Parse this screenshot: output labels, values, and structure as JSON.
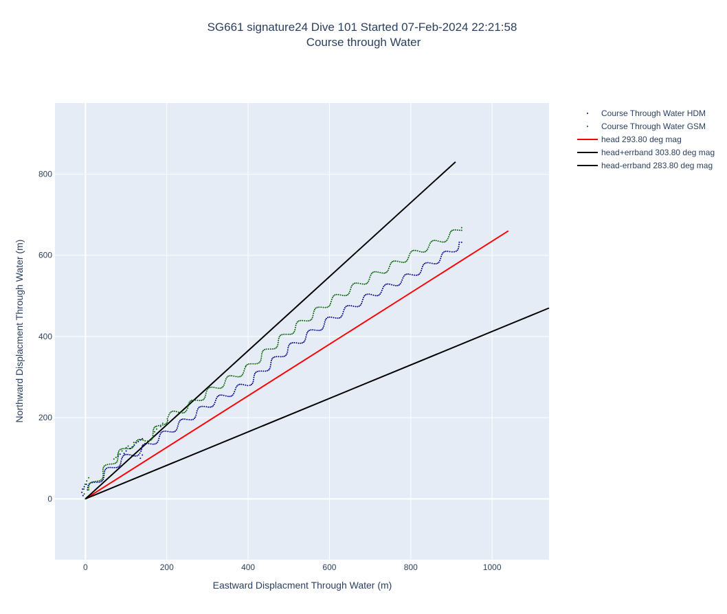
{
  "chart_data": {
    "type": "scatter",
    "title": "SG661 signature24 Dive 101 Started 07-Feb-2024 22:21:58",
    "subtitle": "Course through Water",
    "xlabel": "Eastward Displacment Through Water (m)",
    "ylabel": "Northward Displacment Through Water (m)",
    "xlim": [
      -75,
      1140
    ],
    "ylim": [
      -150,
      975
    ],
    "x_ticks": [
      0,
      200,
      400,
      600,
      800,
      1000
    ],
    "y_ticks": [
      0,
      200,
      400,
      600,
      800
    ],
    "grid": true,
    "legend_position": "top-right",
    "series": [
      {
        "name": "Course Through Water HDM",
        "mode": "markers",
        "color": "#00008b",
        "track": {
          "spiral_start": [
            [
              0,
              0
            ],
            [
              -6,
              8
            ],
            [
              -9,
              16
            ],
            [
              -7,
              24
            ],
            [
              -3,
              30
            ],
            [
              2,
              36
            ]
          ],
          "waypoints": [
            [
              5,
              22
            ],
            [
              30,
              45
            ],
            [
              60,
              72
            ],
            [
              90,
              96
            ],
            [
              120,
              112
            ],
            [
              140,
              120
            ],
            [
              150,
              130
            ],
            [
              180,
              150
            ],
            [
              250,
              195
            ],
            [
              300,
              230
            ],
            [
              400,
              285
            ],
            [
              500,
              370
            ],
            [
              600,
              440
            ],
            [
              700,
              500
            ],
            [
              800,
              550
            ],
            [
              900,
              610
            ],
            [
              925,
              632
            ]
          ],
          "wave_amplitude": 8,
          "wave_wavelength": 55,
          "extra_points": [
            [
              80,
              105
            ],
            [
              85,
              110
            ],
            [
              95,
              112
            ],
            [
              100,
              118
            ],
            [
              110,
              124
            ],
            [
              115,
              128
            ],
            [
              120,
              132
            ],
            [
              125,
              138
            ],
            [
              130,
              141
            ],
            [
              135,
              145
            ],
            [
              140,
              148
            ],
            [
              135,
              100
            ],
            [
              140,
              108
            ]
          ]
        }
      },
      {
        "name": "Course Through Water GSM",
        "mode": "markers",
        "color": "#006400",
        "track": {
          "spiral_start": [
            [
              0,
              0
            ],
            [
              -3,
              12
            ],
            [
              -4,
              24
            ],
            [
              -1,
              36
            ],
            [
              3,
              44
            ],
            [
              8,
              52
            ]
          ],
          "waypoints": [
            [
              8,
              22
            ],
            [
              30,
              48
            ],
            [
              60,
              85
            ],
            [
              90,
              115
            ],
            [
              110,
              132
            ],
            [
              120,
              140
            ],
            [
              125,
              135
            ],
            [
              150,
              145
            ],
            [
              180,
              175
            ],
            [
              200,
              200
            ],
            [
              250,
              225
            ],
            [
              300,
              262
            ],
            [
              400,
              322
            ],
            [
              500,
              410
            ],
            [
              600,
              485
            ],
            [
              700,
              545
            ],
            [
              800,
              600
            ],
            [
              900,
              650
            ],
            [
              925,
              668
            ]
          ],
          "wave_amplitude": 8,
          "wave_wavelength": 55,
          "extra_points": [
            [
              70,
              98
            ],
            [
              75,
              102
            ],
            [
              80,
              110
            ],
            [
              90,
              118
            ],
            [
              100,
              126
            ],
            [
              105,
              130
            ],
            [
              170,
              165
            ],
            [
              175,
              172
            ],
            [
              185,
              178
            ],
            [
              190,
              186
            ]
          ]
        }
      },
      {
        "name": "head 293.80 deg mag",
        "mode": "lines",
        "color": "#ff0000",
        "x": [
          0,
          1040
        ],
        "y": [
          0,
          660
        ]
      },
      {
        "name": "head+errband 303.80 deg mag",
        "mode": "lines",
        "color": "#000000",
        "x": [
          0,
          910
        ],
        "y": [
          0,
          830
        ]
      },
      {
        "name": "head-errband 283.80 deg mag",
        "mode": "lines",
        "color": "#000000",
        "x": [
          0,
          1140
        ],
        "y": [
          0,
          470
        ]
      }
    ]
  }
}
